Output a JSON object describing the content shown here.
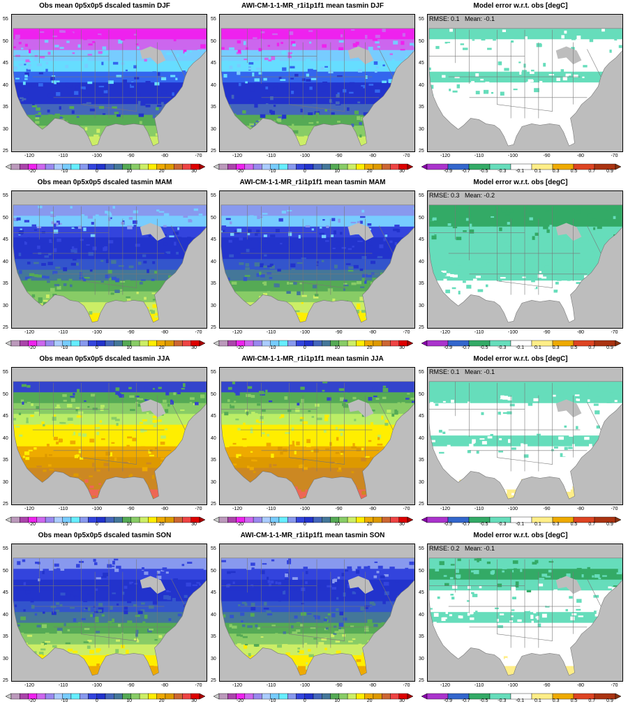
{
  "rows": [
    {
      "season": "DJF",
      "obs_title": "Obs mean 0p5x0p5 dscaled tasmin DJF",
      "model_title": "AWI-CM-1-1-MR_r1i1p1f1 mean tasmin DJF",
      "error_title": "Model error w.r.t. obs [degC]",
      "stats": "RMSE: 0.1   Mean: -0.1",
      "obs_palette": [
        "#ee22ee",
        "#cc66ee",
        "#77ccff",
        "#66ddff",
        "#3366ee",
        "#2233cc",
        "#2233cc",
        "#4466bb",
        "#55aa55",
        "#88cc66",
        "#ccee66"
      ],
      "model_palette": [
        "#ee22ee",
        "#cc66ee",
        "#77ccff",
        "#66ddff",
        "#3366ee",
        "#2233cc",
        "#2233cc",
        "#4466bb",
        "#55aa55",
        "#88cc66",
        "#ccee66"
      ],
      "error_palette": [
        "#66ddbb",
        "#ffffff",
        "#ffffff",
        "#ffffff",
        "#66ddbb",
        "#ffffff",
        "#ffffff",
        "#ffffff",
        "#ffffff",
        "#ffffff",
        "#ffffff"
      ]
    },
    {
      "season": "MAM",
      "obs_title": "Obs mean 0p5x0p5 dscaled tasmin MAM",
      "model_title": "AWI-CM-1-1-MR_r1i1p1f1 mean tasmin MAM",
      "error_title": "Model error w.r.t. obs [degC]",
      "stats": "RMSE: 0.3   Mean: -0.2",
      "obs_palette": [
        "#8899ee",
        "#77ccff",
        "#3344dd",
        "#2233cc",
        "#2233cc",
        "#3355cc",
        "#447799",
        "#55aa55",
        "#88cc66",
        "#ccee66",
        "#ffee00"
      ],
      "model_palette": [
        "#8899ee",
        "#77ccff",
        "#3344dd",
        "#2233cc",
        "#2233cc",
        "#3355cc",
        "#447799",
        "#55aa55",
        "#88cc66",
        "#ccee66",
        "#ffee00"
      ],
      "error_palette": [
        "#33aa66",
        "#33aa66",
        "#66ddbb",
        "#66ddbb",
        "#66ddbb",
        "#66ddbb",
        "#66ddbb",
        "#ffffff",
        "#ffffff",
        "#ffffff",
        "#ffffff"
      ]
    },
    {
      "season": "JJA",
      "obs_title": "Obs mean 0p5x0p5 dscaled tasmin JJA",
      "model_title": "AWI-CM-1-1-MR_r1i1p1f1 mean tasmin JJA",
      "error_title": "Model error w.r.t. obs [degC]",
      "stats": "RMSE: 0.1   Mean: -0.1",
      "obs_palette": [
        "#3344cc",
        "#55aa55",
        "#88cc66",
        "#bbee66",
        "#ffee00",
        "#ffee00",
        "#eeaa00",
        "#dd9900",
        "#cc8822",
        "#cc8822",
        "#ee6655"
      ],
      "model_palette": [
        "#3344cc",
        "#55aa55",
        "#88cc66",
        "#bbee66",
        "#ffee00",
        "#ffee00",
        "#eeaa00",
        "#dd9900",
        "#cc8822",
        "#cc8822",
        "#ee6655"
      ],
      "error_palette": [
        "#66ddbb",
        "#66ddbb",
        "#ffffff",
        "#ffffff",
        "#ffffff",
        "#66ddbb",
        "#ffffff",
        "#ffffff",
        "#ffffff",
        "#ffffff",
        "#ffee88"
      ]
    },
    {
      "season": "SON",
      "obs_title": "Obs mean 0p5x0p5 dscaled tasmin SON",
      "model_title": "AWI-CM-1-1-MR_r1i1p1f1 mean tasmin SON",
      "error_title": "Model error w.r.t. obs [degC]",
      "stats": "RMSE: 0.2   Mean: -0.1",
      "obs_palette": [
        "#8899ee",
        "#3344dd",
        "#2233cc",
        "#2233cc",
        "#3355cc",
        "#447799",
        "#55aa55",
        "#88cc66",
        "#ccee66",
        "#ffee00",
        "#eeaa00"
      ],
      "model_palette": [
        "#8899ee",
        "#3344dd",
        "#2233cc",
        "#2233cc",
        "#3355cc",
        "#447799",
        "#55aa55",
        "#88cc66",
        "#ccee66",
        "#ffee00",
        "#eeaa00"
      ],
      "error_palette": [
        "#66ddbb",
        "#33aa66",
        "#66ddbb",
        "#ffffff",
        "#ffffff",
        "#66ddbb",
        "#ffffff",
        "#ffffff",
        "#ffffff",
        "#ffffff",
        "#ffee88"
      ]
    }
  ],
  "axes": {
    "lon_ticks": [
      "-120",
      "-110",
      "-100",
      "-90",
      "-80",
      "-70"
    ],
    "lat_ticks": [
      "55",
      "50",
      "45",
      "40",
      "35",
      "30",
      "25"
    ]
  },
  "temp_colorbar": {
    "labels": [
      "-20",
      "-10",
      "0",
      "10",
      "20",
      "30"
    ],
    "colors": [
      "#cccccc",
      "#bb99bb",
      "#aa44aa",
      "#ee22ee",
      "#cc66ee",
      "#9988ee",
      "#aaccff",
      "#77ccff",
      "#66eeff",
      "#8899ee",
      "#3344dd",
      "#2233cc",
      "#4466bb",
      "#447799",
      "#55aa55",
      "#88cc66",
      "#ccee66",
      "#ffee00",
      "#eeaa00",
      "#dd9900",
      "#cc6633",
      "#ee4444",
      "#dd0000",
      "#aa0000"
    ]
  },
  "error_colorbar": {
    "labels": [
      "-0.9",
      "-0.7",
      "-0.5",
      "-0.3",
      "-0.1",
      "0.1",
      "0.3",
      "0.5",
      "0.7",
      "0.9"
    ],
    "colors": [
      "#8800aa",
      "#aa33cc",
      "#3366cc",
      "#33aa66",
      "#66ddbb",
      "#ffffff",
      "#ffee88",
      "#eeaa00",
      "#dd4422",
      "#aa3311",
      "#883311"
    ]
  },
  "land_mask_color": "#bdbdbd",
  "boundary_color": "#777777"
}
